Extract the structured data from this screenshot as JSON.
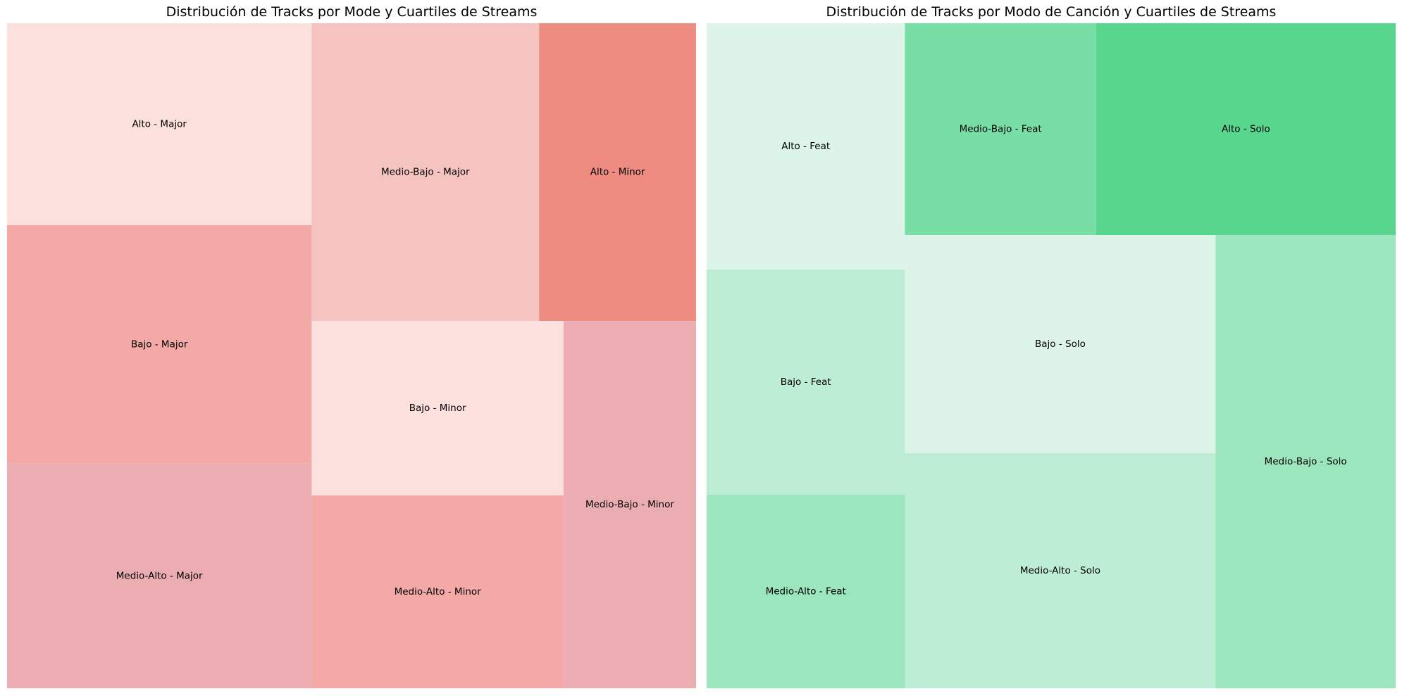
{
  "chart_data": [
    {
      "type": "treemap",
      "title": "Distribución de Tracks por Mode y Cuartiles de Streams",
      "cells": [
        {
          "label": "Alto - Major",
          "value": 12.08,
          "color": "#fbe0dd"
        },
        {
          "label": "Bajo - Major",
          "value": 14.27,
          "color": "#f3a9a5"
        },
        {
          "label": "Medio-Alto - Major",
          "value": 13.44,
          "color": "#ebadb1"
        },
        {
          "label": "Medio-Bajo - Major",
          "value": 13.3,
          "color": "#f5c4c1"
        },
        {
          "label": "Alto - Minor",
          "value": 9.18,
          "color": "#ef8c82"
        },
        {
          "label": "Bajo - Minor",
          "value": 8.63,
          "color": "#fbe0dd"
        },
        {
          "label": "Medio-Alto - Minor",
          "value": 9.54,
          "color": "#f3a9a5"
        },
        {
          "label": "Medio-Bajo - Minor",
          "value": 9.56,
          "color": "#ebadb1"
        }
      ]
    },
    {
      "type": "treemap",
      "title": "Distribución de Tracks por Modo de Canción y Cuartiles de Streams",
      "cells": [
        {
          "label": "Alto - Feat",
          "value": 10.66,
          "color": "#dcf5e8"
        },
        {
          "label": "Bajo - Feat",
          "value": 9.74,
          "color": "#bdedd4"
        },
        {
          "label": "Medio-Alto - Feat",
          "value": 8.38,
          "color": "#9be6bd"
        },
        {
          "label": "Medio-Bajo - Feat",
          "value": 8.84,
          "color": "#79dea6"
        },
        {
          "label": "Alto - Solo",
          "value": 13.85,
          "color": "#58d68d"
        },
        {
          "label": "Bajo - Solo",
          "value": 14.77,
          "color": "#dcf5e8"
        },
        {
          "label": "Medio-Alto - Solo",
          "value": 15.95,
          "color": "#bdedd4"
        },
        {
          "label": "Medio-Bajo - Solo",
          "value": 17.81,
          "color": "#9be6bd"
        }
      ]
    }
  ]
}
